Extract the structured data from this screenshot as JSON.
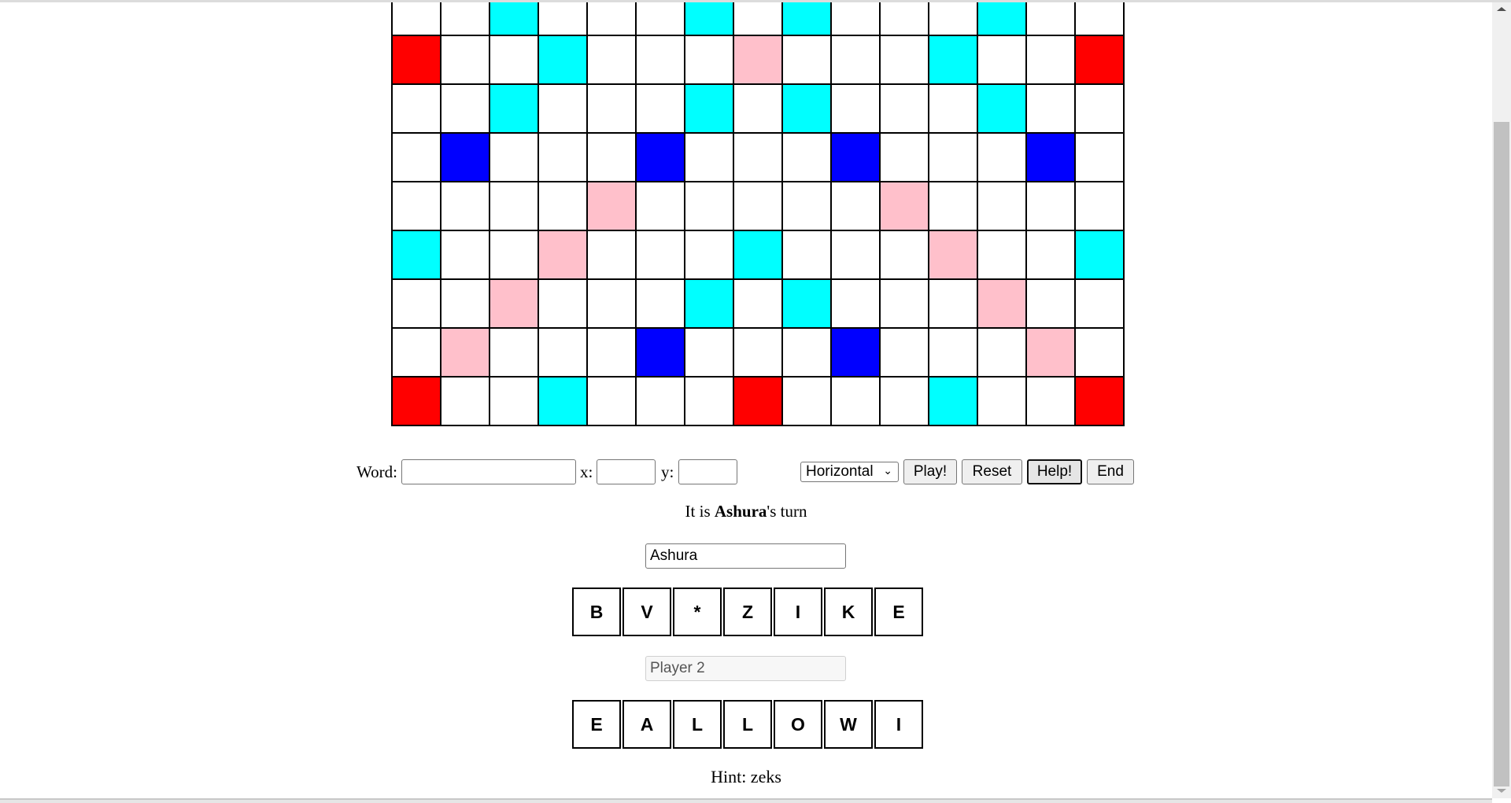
{
  "colors": {
    "white": "#ffffff",
    "cyan": "#00ffff",
    "red": "#ff0000",
    "pink": "#ffc0cb",
    "blue": "#0000ff"
  },
  "board": {
    "rows": [
      [
        "white",
        "white",
        "cyan",
        "white",
        "white",
        "white",
        "cyan",
        "white",
        "cyan",
        "white",
        "white",
        "white",
        "cyan",
        "white",
        "white"
      ],
      [
        "red",
        "white",
        "white",
        "cyan",
        "white",
        "white",
        "white",
        "pink",
        "white",
        "white",
        "white",
        "cyan",
        "white",
        "white",
        "red"
      ],
      [
        "white",
        "white",
        "cyan",
        "white",
        "white",
        "white",
        "cyan",
        "white",
        "cyan",
        "white",
        "white",
        "white",
        "cyan",
        "white",
        "white"
      ],
      [
        "white",
        "blue",
        "white",
        "white",
        "white",
        "blue",
        "white",
        "white",
        "white",
        "blue",
        "white",
        "white",
        "white",
        "blue",
        "white"
      ],
      [
        "white",
        "white",
        "white",
        "white",
        "pink",
        "white",
        "white",
        "white",
        "white",
        "white",
        "pink",
        "white",
        "white",
        "white",
        "white"
      ],
      [
        "cyan",
        "white",
        "white",
        "pink",
        "white",
        "white",
        "white",
        "cyan",
        "white",
        "white",
        "white",
        "pink",
        "white",
        "white",
        "cyan"
      ],
      [
        "white",
        "white",
        "pink",
        "white",
        "white",
        "white",
        "cyan",
        "white",
        "cyan",
        "white",
        "white",
        "white",
        "pink",
        "white",
        "white"
      ],
      [
        "white",
        "pink",
        "white",
        "white",
        "white",
        "blue",
        "white",
        "white",
        "white",
        "blue",
        "white",
        "white",
        "white",
        "pink",
        "white"
      ],
      [
        "red",
        "white",
        "white",
        "cyan",
        "white",
        "white",
        "white",
        "red",
        "white",
        "white",
        "white",
        "cyan",
        "white",
        "white",
        "red"
      ]
    ]
  },
  "controls": {
    "word_label": "Word:",
    "word_value": "",
    "x_label": "x:",
    "x_value": "",
    "y_label": "y:",
    "y_value": "",
    "direction": "Horizontal",
    "play": "Play!",
    "reset": "Reset",
    "help": "Help!",
    "end": "End"
  },
  "turn": {
    "prefix": "It is ",
    "player": "Ashura",
    "suffix": "'s turn"
  },
  "players": [
    {
      "name": "Ashura",
      "active": true,
      "tiles": [
        "B",
        "V",
        "*",
        "Z",
        "I",
        "K",
        "E"
      ]
    },
    {
      "name": "Player 2",
      "active": false,
      "tiles": [
        "E",
        "A",
        "L",
        "L",
        "O",
        "W",
        "I"
      ]
    }
  ],
  "hint": "Hint: zeks"
}
